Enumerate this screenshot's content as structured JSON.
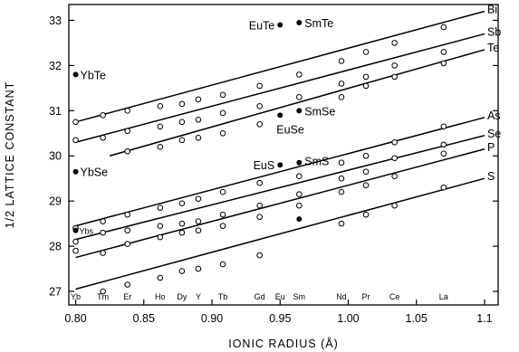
{
  "chart_data": {
    "type": "scatter",
    "title": "",
    "xlabel": "IONIC RADIUS (Å)",
    "ylabel": "1/2 LATTICE CONSTANT",
    "xlim": [
      0.795,
      1.11
    ],
    "ylim": [
      26.7,
      33.35
    ],
    "grid": false,
    "x_ticks": [
      {
        "value": 0.8,
        "label": "0.80"
      },
      {
        "value": 0.85,
        "label": "0.85"
      },
      {
        "value": 0.9,
        "label": "0.90"
      },
      {
        "value": 0.95,
        "label": "0.95"
      },
      {
        "value": 1.0,
        "label": "1.00"
      },
      {
        "value": 1.05,
        "label": "1.05"
      },
      {
        "value": 1.1,
        "label": "1.1"
      }
    ],
    "y_ticks": [
      {
        "value": 27,
        "label": "27"
      },
      {
        "value": 28,
        "label": "28"
      },
      {
        "value": 29,
        "label": "29"
      },
      {
        "value": 30,
        "label": "30"
      },
      {
        "value": 31,
        "label": "31"
      },
      {
        "value": 32,
        "label": "32"
      },
      {
        "value": 33,
        "label": "33"
      }
    ],
    "element_labels": [
      {
        "label": "Yb",
        "x": 0.8
      },
      {
        "label": "Tm",
        "x": 0.82
      },
      {
        "label": "Er",
        "x": 0.838
      },
      {
        "label": "Ho",
        "x": 0.862
      },
      {
        "label": "Dy",
        "x": 0.878
      },
      {
        "label": "Y",
        "x": 0.89
      },
      {
        "label": "Tb",
        "x": 0.908
      },
      {
        "label": "Gd",
        "x": 0.935
      },
      {
        "label": "Eu",
        "x": 0.95
      },
      {
        "label": "Sm",
        "x": 0.964
      },
      {
        "label": "Nd",
        "x": 0.995
      },
      {
        "label": "Pr",
        "x": 1.013
      },
      {
        "label": "Ce",
        "x": 1.034
      },
      {
        "label": "La",
        "x": 1.07
      }
    ],
    "series": [
      {
        "name": "Bi",
        "line": [
          [
            0.8,
            30.75
          ],
          [
            1.1,
            33.2
          ]
        ],
        "open": [
          [
            0.8,
            30.75
          ],
          [
            0.82,
            30.9
          ],
          [
            0.838,
            31.0
          ],
          [
            0.862,
            31.1
          ],
          [
            0.878,
            31.15
          ],
          [
            0.89,
            31.25
          ],
          [
            0.908,
            31.35
          ],
          [
            0.935,
            31.55
          ],
          [
            0.964,
            31.8
          ],
          [
            0.995,
            32.1
          ],
          [
            1.013,
            32.3
          ],
          [
            1.034,
            32.5
          ],
          [
            1.07,
            32.85
          ]
        ]
      },
      {
        "name": "Sb",
        "line": [
          [
            0.8,
            30.3
          ],
          [
            1.1,
            32.7
          ]
        ],
        "open": [
          [
            0.8,
            30.35
          ],
          [
            0.82,
            30.4
          ],
          [
            0.838,
            30.55
          ],
          [
            0.862,
            30.65
          ],
          [
            0.878,
            30.75
          ],
          [
            0.89,
            30.8
          ],
          [
            0.908,
            30.95
          ],
          [
            0.935,
            31.1
          ],
          [
            0.964,
            31.3
          ],
          [
            0.995,
            31.6
          ],
          [
            1.013,
            31.75
          ],
          [
            1.034,
            32.0
          ],
          [
            1.07,
            32.3
          ]
        ]
      },
      {
        "name": "Te",
        "line": [
          [
            0.825,
            30.0
          ],
          [
            1.1,
            32.35
          ]
        ],
        "open": [
          [
            0.838,
            30.1
          ],
          [
            0.862,
            30.2
          ],
          [
            0.878,
            30.35
          ],
          [
            0.89,
            30.4
          ],
          [
            0.908,
            30.5
          ],
          [
            0.935,
            30.7
          ],
          [
            0.995,
            31.3
          ],
          [
            1.013,
            31.55
          ],
          [
            1.034,
            31.75
          ],
          [
            1.07,
            32.05
          ]
        ]
      },
      {
        "name": "As",
        "line": [
          [
            0.8,
            28.45
          ],
          [
            1.1,
            30.85
          ]
        ],
        "open": [
          [
            0.8,
            28.4
          ],
          [
            0.82,
            28.55
          ],
          [
            0.838,
            28.7
          ],
          [
            0.862,
            28.85
          ],
          [
            0.878,
            28.95
          ],
          [
            0.89,
            29.05
          ],
          [
            0.908,
            29.2
          ],
          [
            0.935,
            29.4
          ],
          [
            0.964,
            29.55
          ],
          [
            0.995,
            29.85
          ],
          [
            1.013,
            30.0
          ],
          [
            1.034,
            30.3
          ],
          [
            1.07,
            30.65
          ]
        ]
      },
      {
        "name": "Se",
        "line": [
          [
            0.8,
            28.15
          ],
          [
            1.1,
            30.45
          ]
        ],
        "open": [
          [
            0.8,
            28.1
          ],
          [
            0.82,
            28.3
          ],
          [
            0.838,
            28.35
          ],
          [
            0.862,
            28.45
          ],
          [
            0.878,
            28.5
          ],
          [
            0.89,
            28.55
          ],
          [
            0.908,
            28.7
          ],
          [
            0.935,
            28.9
          ],
          [
            0.964,
            29.15
          ],
          [
            0.995,
            29.5
          ],
          [
            1.013,
            29.65
          ],
          [
            1.034,
            29.95
          ],
          [
            1.07,
            30.25
          ]
        ]
      },
      {
        "name": "P",
        "line": [
          [
            0.8,
            27.75
          ],
          [
            1.1,
            30.15
          ]
        ],
        "open": [
          [
            0.8,
            27.9
          ],
          [
            0.82,
            27.85
          ],
          [
            0.838,
            28.05
          ],
          [
            0.862,
            28.2
          ],
          [
            0.878,
            28.3
          ],
          [
            0.89,
            28.35
          ],
          [
            0.908,
            28.45
          ],
          [
            0.935,
            28.65
          ],
          [
            0.964,
            28.9
          ],
          [
            0.995,
            29.2
          ],
          [
            1.013,
            29.35
          ],
          [
            1.034,
            29.55
          ],
          [
            1.07,
            30.05
          ]
        ]
      },
      {
        "name": "S",
        "line": [
          [
            0.8,
            27.05
          ],
          [
            1.1,
            29.5
          ]
        ],
        "open": [
          [
            0.82,
            27.0
          ],
          [
            0.838,
            27.15
          ],
          [
            0.862,
            27.3
          ],
          [
            0.878,
            27.45
          ],
          [
            0.89,
            27.5
          ],
          [
            0.908,
            27.6
          ],
          [
            0.935,
            27.8
          ],
          [
            0.995,
            28.5
          ],
          [
            1.013,
            28.7
          ],
          [
            1.034,
            28.9
          ],
          [
            1.07,
            29.3
          ]
        ]
      }
    ],
    "solid_points": [
      {
        "label": "YbTe",
        "x": 0.8,
        "y": 31.8
      },
      {
        "label": "YbSe",
        "x": 0.8,
        "y": 29.65
      },
      {
        "label": "Ybs",
        "x": 0.8,
        "y": 28.35
      },
      {
        "label": "EuTe",
        "x": 0.95,
        "y": 32.9
      },
      {
        "label": "SmTe",
        "x": 0.964,
        "y": 32.95
      },
      {
        "label": "EuSe",
        "x": 0.95,
        "y": 30.9
      },
      {
        "label": "SmSe",
        "x": 0.964,
        "y": 31.0
      },
      {
        "label": "EuS",
        "x": 0.95,
        "y": 29.8
      },
      {
        "label": "SmS",
        "x": 0.964,
        "y": 29.85
      },
      {
        "label": "",
        "x": 0.964,
        "y": 28.6
      }
    ]
  }
}
